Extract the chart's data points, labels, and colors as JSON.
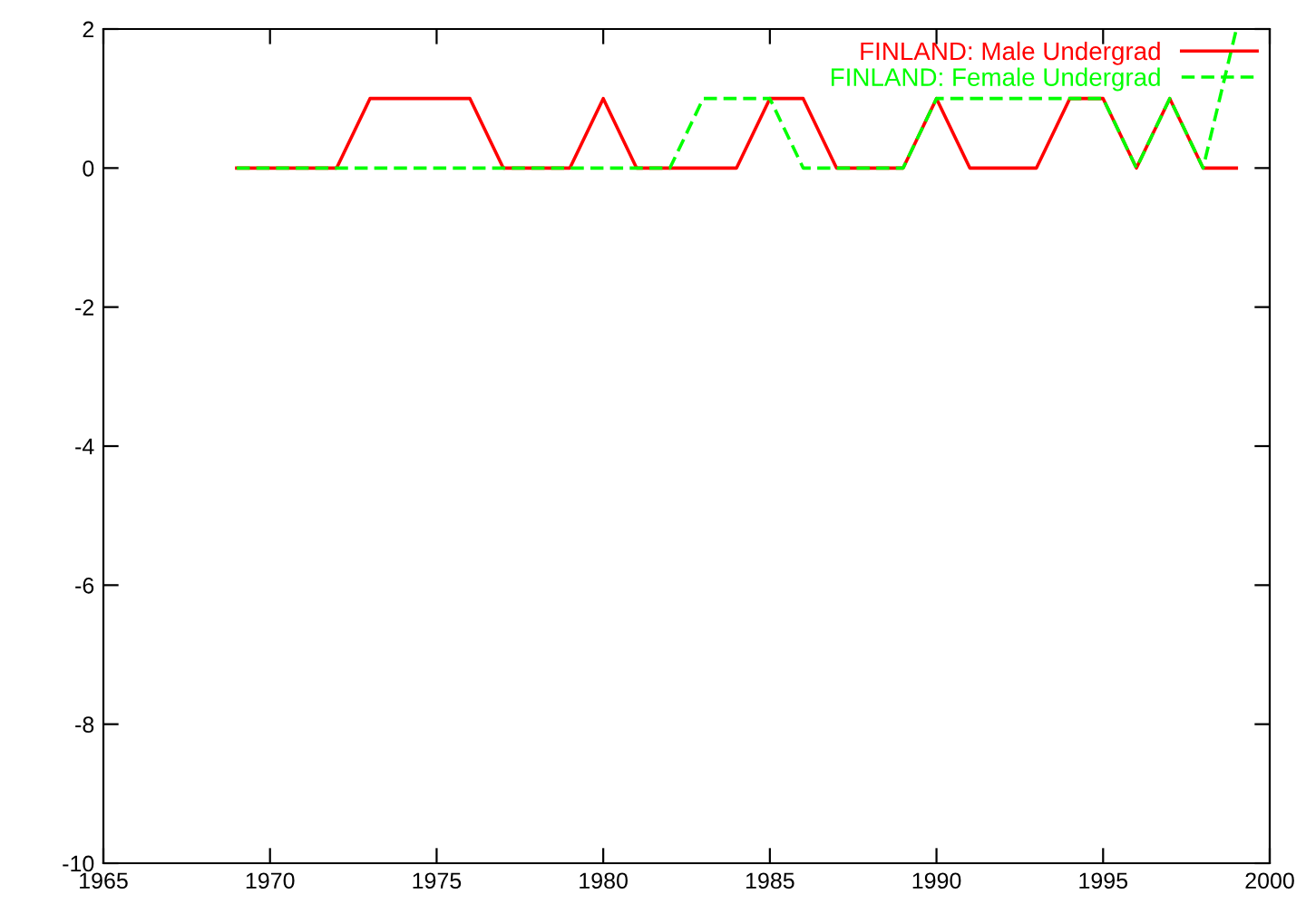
{
  "chart_data": {
    "type": "line",
    "x": [
      1969,
      1970,
      1971,
      1972,
      1973,
      1974,
      1975,
      1976,
      1977,
      1978,
      1979,
      1980,
      1981,
      1982,
      1983,
      1984,
      1985,
      1986,
      1987,
      1988,
      1989,
      1990,
      1991,
      1992,
      1993,
      1994,
      1995,
      1996,
      1997,
      1998,
      1999
    ],
    "series": [
      {
        "name": "FINLAND: Male Undergrad",
        "color": "#ff0000",
        "line_style": "solid",
        "values": [
          0,
          0,
          0,
          0,
          1,
          1,
          1,
          1,
          0,
          0,
          0,
          1,
          0,
          0,
          0,
          0,
          1,
          1,
          0,
          0,
          0,
          1,
          0,
          0,
          0,
          1,
          1,
          0,
          1,
          0,
          0
        ]
      },
      {
        "name": "FINLAND: Female Undergrad",
        "color": "#00ff00",
        "line_style": "dashed",
        "values": [
          0,
          0,
          0,
          0,
          0,
          0,
          0,
          0,
          0,
          0,
          0,
          0,
          0,
          0,
          1,
          1,
          1,
          0,
          0,
          0,
          0,
          1,
          1,
          1,
          1,
          1,
          1,
          0,
          1,
          0,
          2
        ]
      }
    ],
    "xlim": [
      1965,
      2000
    ],
    "xticks": [
      1965,
      1970,
      1975,
      1980,
      1985,
      1990,
      1995,
      2000
    ],
    "ylim": [
      -10,
      2
    ],
    "yticks": [
      -10,
      -8,
      -6,
      -4,
      -2,
      0,
      2
    ],
    "grid": false,
    "legend": "top right",
    "marker": "none"
  }
}
